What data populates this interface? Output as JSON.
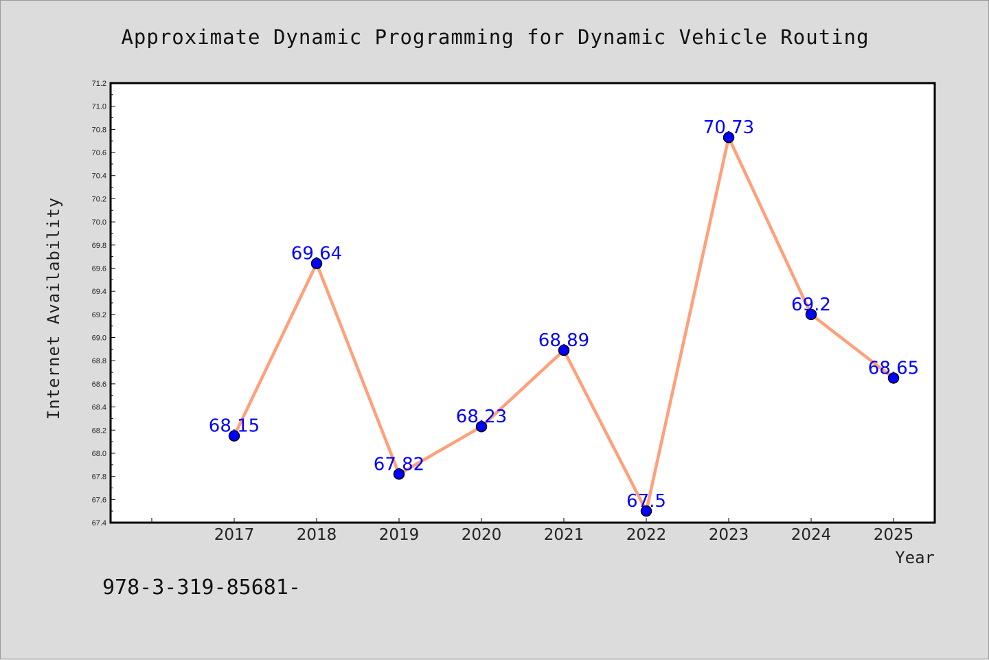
{
  "chart_data": {
    "type": "line",
    "title": "Approximate Dynamic Programming for Dynamic Vehicle Routing",
    "xlabel": "Year",
    "ylabel": "Internet Availability",
    "categories": [
      "2017",
      "2018",
      "2019",
      "2020",
      "2021",
      "2022",
      "2023",
      "2024",
      "2025"
    ],
    "values": [
      68.15,
      69.64,
      67.82,
      68.23,
      68.89,
      67.5,
      70.73,
      69.2,
      68.65
    ],
    "data_labels": [
      "68.15",
      "69.64",
      "67.82",
      "68.23",
      "68.89",
      "67.5",
      "70.73",
      "69.2",
      "68.65"
    ],
    "ylim": [
      67.4,
      71.2
    ],
    "yticks": [
      "67.4",
      "67.6",
      "67.8",
      "68.0",
      "68.2",
      "68.4",
      "68.6",
      "68.8",
      "69.0",
      "69.2",
      "69.4",
      "69.6",
      "69.8",
      "70.0",
      "70.2",
      "70.4",
      "70.6",
      "70.8",
      "71.0",
      "71.2"
    ],
    "grid": false,
    "line_color": "#ffa07a",
    "marker_color": "#0000ff",
    "label_color": "#0000ff"
  },
  "footer": {
    "text": "978-3-319-85681-"
  }
}
